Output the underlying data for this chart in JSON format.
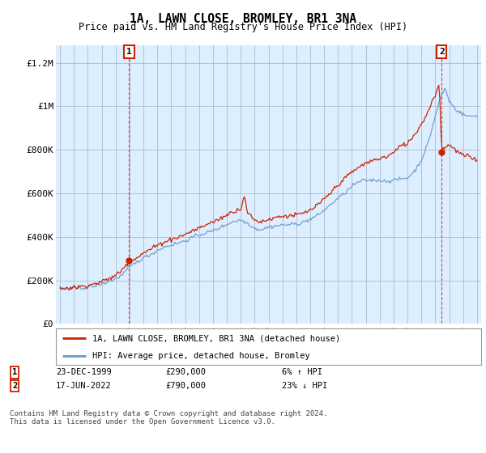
{
  "title": "1A, LAWN CLOSE, BROMLEY, BR1 3NA",
  "subtitle": "Price paid vs. HM Land Registry's House Price Index (HPI)",
  "ylabel_ticks": [
    "£0",
    "£200K",
    "£400K",
    "£600K",
    "£800K",
    "£1M",
    "£1.2M"
  ],
  "ytick_values": [
    0,
    200000,
    400000,
    600000,
    800000,
    1000000,
    1200000
  ],
  "ylim": [
    0,
    1280000
  ],
  "xlim_start": 1994.7,
  "xlim_end": 2025.3,
  "hpi_color": "#6699cc",
  "price_color": "#cc2200",
  "marker1_date": "23-DEC-1999",
  "marker1_price": "£290,000",
  "marker1_hpi": "6% ↑ HPI",
  "marker1_year": 1999.97,
  "marker1_value": 290000,
  "marker2_date": "17-JUN-2022",
  "marker2_price": "£790,000",
  "marker2_hpi": "23% ↓ HPI",
  "marker2_year": 2022.46,
  "marker2_value": 790000,
  "legend_line1": "1A, LAWN CLOSE, BROMLEY, BR1 3NA (detached house)",
  "legend_line2": "HPI: Average price, detached house, Bromley",
  "footer": "Contains HM Land Registry data © Crown copyright and database right 2024.\nThis data is licensed under the Open Government Licence v3.0.",
  "chart_bg": "#ddeeff",
  "grid_color": "#aabbcc",
  "fig_bg": "#ffffff"
}
